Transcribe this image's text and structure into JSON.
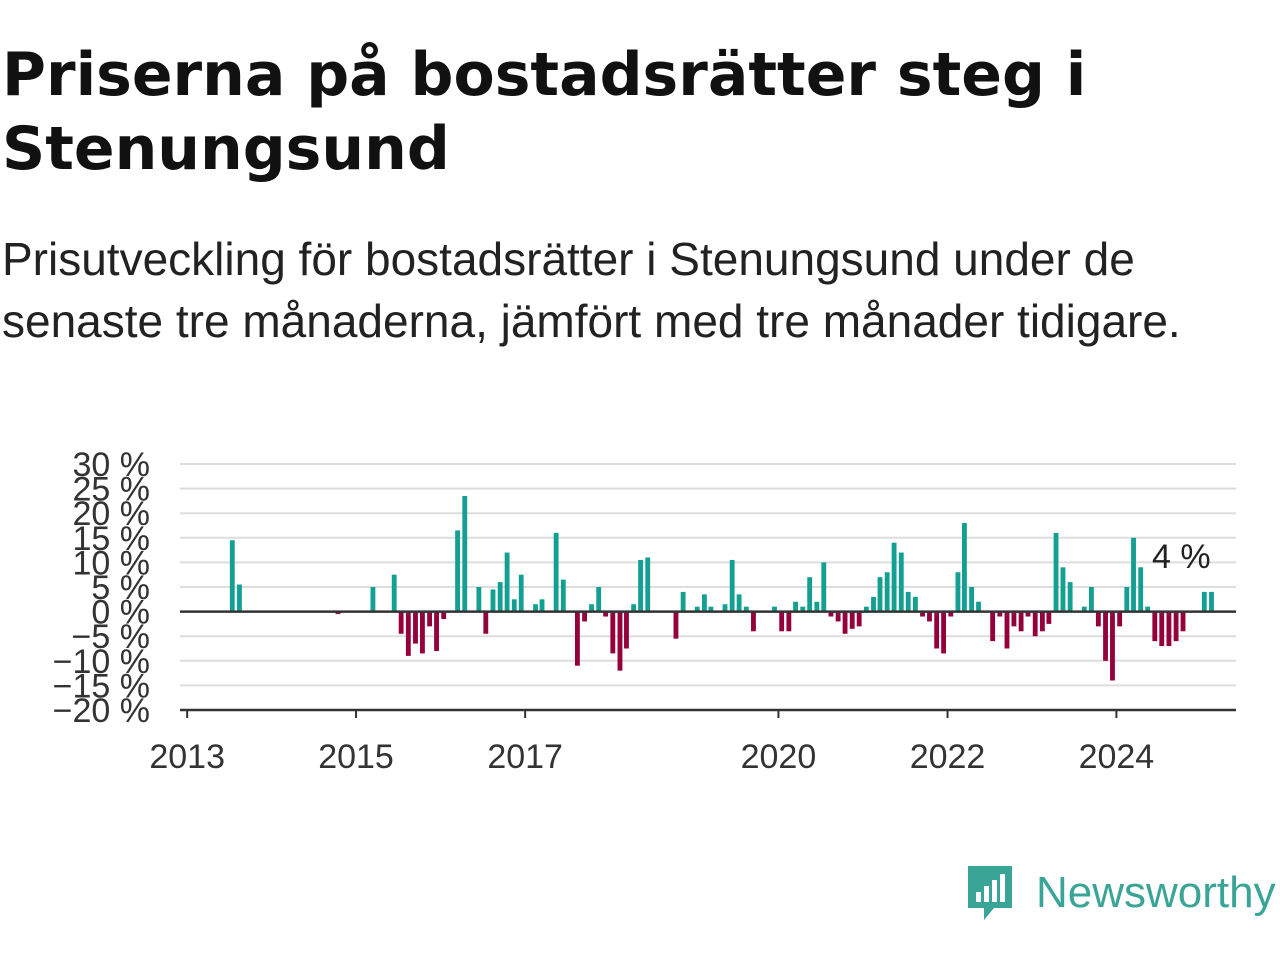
{
  "title": "Priserna på bostadsrätter steg i Stenungsund",
  "subtitle": "Prisutveckling för bostadsrätter i Stenungsund under de senaste tre månaderna, jämfört med tre månader tidigare.",
  "brand": {
    "name": "Newsworthy",
    "color": "#3aa597"
  },
  "colors": {
    "positive": "#13a092",
    "negative": "#94003c",
    "grid": "#dddddd",
    "zero": "#333333"
  },
  "chart_data": {
    "type": "bar",
    "title": "Priserna på bostadsrätter steg i Stenungsund",
    "xlabel": "",
    "ylabel": "",
    "ylim": [
      -20,
      30
    ],
    "yticks": [
      30,
      25,
      20,
      15,
      10,
      5,
      0,
      -5,
      -10,
      -15,
      -20
    ],
    "ytick_labels": [
      "30 %",
      "25 %",
      "20 %",
      "15 %",
      "10 %",
      "5 %",
      "0 %",
      "−5 %",
      "−10 %",
      "−15 %",
      "−20 %"
    ],
    "xticks": [
      "2013",
      "2015",
      "2017",
      "2020",
      "2022",
      "2024"
    ],
    "annotation": "4 %",
    "grid": true,
    "legend": "none",
    "x": [
      "2013-07",
      "2013-08",
      "2013-09",
      "2013-10",
      "2013-11",
      "2013-12",
      "2014-01",
      "2014-02",
      "2014-03",
      "2014-04",
      "2014-05",
      "2014-06",
      "2014-07",
      "2014-08",
      "2014-09",
      "2014-10",
      "2014-11",
      "2014-12",
      "2015-01",
      "2015-02",
      "2015-03",
      "2015-04",
      "2015-05",
      "2015-06",
      "2015-07",
      "2015-08",
      "2015-09",
      "2015-10",
      "2015-11",
      "2015-12",
      "2016-01",
      "2016-02",
      "2016-03",
      "2016-04",
      "2016-05",
      "2016-06",
      "2016-07",
      "2016-08",
      "2016-09",
      "2016-10",
      "2016-11",
      "2016-12",
      "2017-01",
      "2017-02",
      "2017-03",
      "2017-04",
      "2017-05",
      "2017-06",
      "2017-07",
      "2017-08",
      "2017-09",
      "2017-10",
      "2017-11",
      "2017-12",
      "2018-01",
      "2018-02",
      "2018-03",
      "2018-04",
      "2018-05",
      "2018-06",
      "2018-07",
      "2018-08",
      "2018-09",
      "2018-10",
      "2018-11",
      "2018-12",
      "2019-01",
      "2019-02",
      "2019-03",
      "2019-04",
      "2019-05",
      "2019-06",
      "2019-07",
      "2019-08",
      "2019-09",
      "2019-10",
      "2019-11",
      "2019-12",
      "2020-01",
      "2020-02",
      "2020-03",
      "2020-04",
      "2020-05",
      "2020-06",
      "2020-07",
      "2020-08",
      "2020-09",
      "2020-10",
      "2020-11",
      "2020-12",
      "2021-01",
      "2021-02",
      "2021-03",
      "2021-04",
      "2021-05",
      "2021-06",
      "2021-07",
      "2021-08",
      "2021-09",
      "2021-10",
      "2021-11",
      "2021-12",
      "2022-01",
      "2022-02",
      "2022-03",
      "2022-04",
      "2022-05",
      "2022-06",
      "2022-07",
      "2022-08",
      "2022-09",
      "2022-10",
      "2022-11",
      "2022-12",
      "2023-01",
      "2023-02",
      "2023-03",
      "2023-04",
      "2023-05",
      "2023-06",
      "2023-07",
      "2023-08",
      "2023-09",
      "2023-10",
      "2023-11",
      "2023-12",
      "2024-01",
      "2024-02",
      "2024-03",
      "2024-04",
      "2024-05",
      "2024-06",
      "2024-07",
      "2024-08",
      "2024-09",
      "2024-10",
      "2024-11",
      "2024-12",
      "2025-01",
      "2025-02"
    ],
    "values": [
      14.5,
      5.5,
      0,
      0,
      0,
      0,
      0,
      0,
      0,
      0,
      0,
      0,
      0,
      0,
      0,
      -0.5,
      0,
      0,
      0,
      0,
      5,
      0,
      0,
      7.5,
      -4.5,
      -9,
      -6.5,
      -8.5,
      -3,
      -8,
      -1.5,
      0,
      16.5,
      23.5,
      0,
      5,
      -4.5,
      4.5,
      6,
      12,
      2.5,
      7.5,
      0,
      1.5,
      2.5,
      0,
      16,
      6.5,
      0,
      -11,
      -2,
      1.5,
      5,
      -1,
      -8.5,
      -12,
      -7.5,
      1.5,
      10.5,
      11,
      0,
      0,
      0,
      -5.5,
      4,
      0,
      1,
      3.5,
      1,
      0,
      1.5,
      10.5,
      3.5,
      1,
      -4,
      0,
      0,
      1,
      -4,
      -4,
      2,
      1,
      7,
      2,
      10,
      -1,
      -2,
      -4.5,
      -3.5,
      -3,
      1,
      3,
      7,
      8,
      14,
      12,
      4,
      3,
      -1,
      -2,
      -7.5,
      -8.5,
      -1,
      8,
      18,
      5,
      2,
      0,
      -6,
      -1,
      -7.5,
      -3,
      -4,
      -1,
      -5,
      -4,
      -2.5,
      16,
      9,
      6,
      0,
      1,
      5,
      -3,
      -10,
      -14,
      -3,
      5,
      15,
      9,
      1,
      -6,
      -7,
      -7,
      -6,
      -4,
      0,
      0,
      4,
      4
    ]
  }
}
